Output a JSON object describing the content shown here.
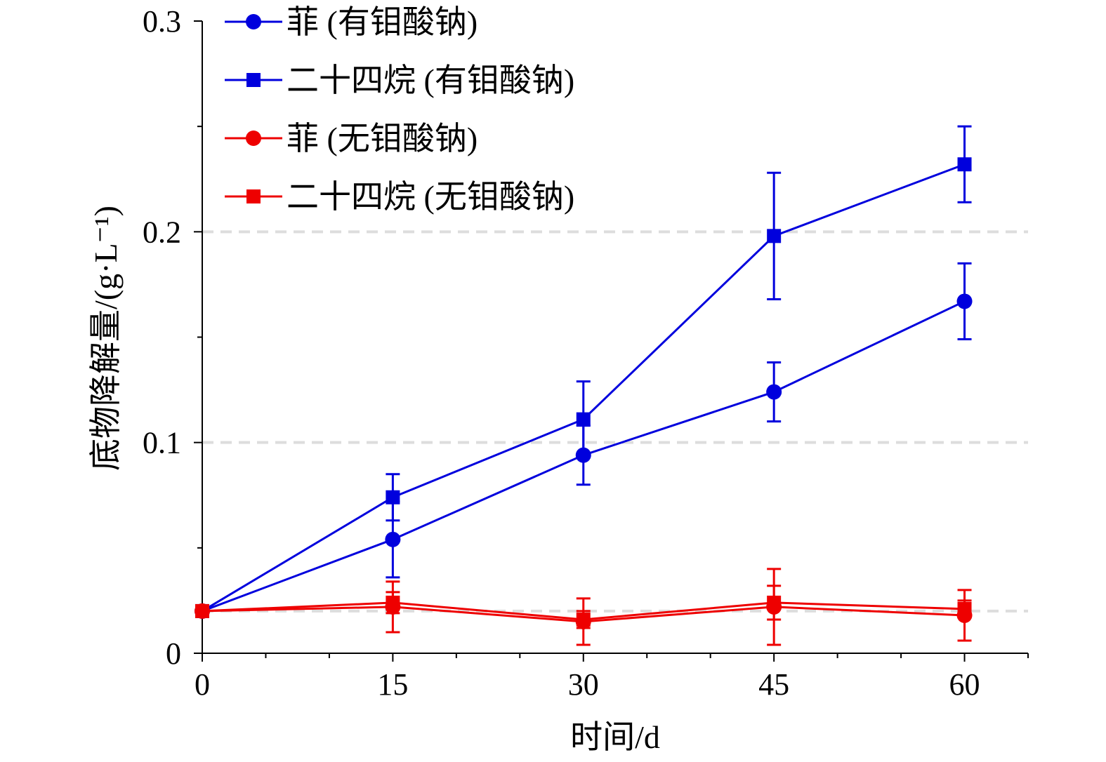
{
  "chart_data": {
    "type": "line",
    "title": "",
    "xlabel": "时间/d",
    "ylabel": "底物降解量/(g·L⁻¹)",
    "x": [
      0,
      15,
      30,
      45,
      60
    ],
    "xlim": [
      0,
      65
    ],
    "ylim": [
      0,
      0.3
    ],
    "x_ticks": [
      "0",
      "15",
      "30",
      "45",
      "60"
    ],
    "y_ticks": [
      "0",
      "0.1",
      "0.2",
      "0.3"
    ],
    "reference_lines_y": [
      0.02,
      0.1,
      0.2
    ],
    "legend_position": "top-left",
    "series": [
      {
        "name": "菲 (有钼酸钠)",
        "color": "#0000dd",
        "marker": "circle",
        "values": [
          0.02,
          0.054,
          0.094,
          0.124,
          0.167
        ],
        "errors": [
          0,
          0.018,
          0.014,
          0.014,
          0.018
        ]
      },
      {
        "name": "二十四烷 (有钼酸钠)",
        "color": "#0000dd",
        "marker": "square",
        "values": [
          0.02,
          0.074,
          0.111,
          0.198,
          0.232
        ],
        "errors": [
          0,
          0.011,
          0.018,
          0.03,
          0.018
        ]
      },
      {
        "name": "菲 (无钼酸钠)",
        "color": "#ee0000",
        "marker": "circle",
        "values": [
          0.02,
          0.022,
          0.015,
          0.022,
          0.018
        ],
        "errors": [
          0,
          0.012,
          0.011,
          0.018,
          0.012
        ]
      },
      {
        "name": "二十四烷 (无钼酸钠)",
        "color": "#ee0000",
        "marker": "square",
        "values": [
          0.02,
          0.024,
          0.016,
          0.024,
          0.021
        ],
        "errors": [
          0,
          0.005,
          0.004,
          0.008,
          0.004
        ]
      }
    ]
  }
}
